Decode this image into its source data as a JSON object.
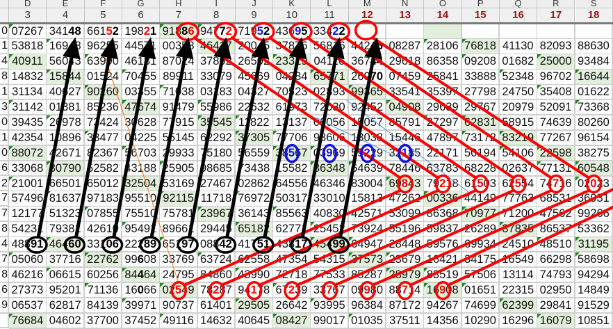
{
  "sheet": {
    "column_letters": [
      "D",
      "E",
      "F",
      "G",
      "H",
      "I",
      "J",
      "K",
      "L",
      "M",
      "N",
      "O",
      "P",
      "Q",
      "R",
      "S"
    ],
    "column_numbers": [
      "3",
      "4",
      "5",
      "6",
      "7",
      "8",
      "9",
      "10",
      "11",
      "12",
      "13",
      "14",
      "15",
      "16",
      "17",
      "18"
    ],
    "row_label_tails": [
      "0",
      "1",
      "4",
      "8",
      "1",
      "3",
      "0",
      "1",
      "0",
      "6",
      "2",
      "7",
      "7",
      "8",
      "4",
      "7",
      "8",
      "6",
      "9",
      ""
    ],
    "rows": [
      [
        "07267",
        [
          [
            "341",
            ""
          ],
          [
            "48",
            "b"
          ]
        ],
        [
          [
            "661",
            ""
          ],
          [
            "5",
            "r"
          ],
          [
            "2",
            "b"
          ]
        ],
        [
          [
            "198",
            ""
          ],
          [
            "2",
            "r"
          ],
          [
            "1",
            "b"
          ]
        ],
        [
          [
            "918",
            ""
          ],
          [
            "8",
            "b"
          ],
          [
            "6",
            "r"
          ]
        ],
        [
          [
            "947",
            ""
          ],
          [
            "7",
            "b"
          ],
          [
            "2",
            "r"
          ]
        ],
        [
          [
            "719",
            ""
          ],
          [
            "5",
            "u"
          ],
          [
            "2",
            "b"
          ]
        ],
        [
          [
            "436",
            ""
          ],
          [
            "9",
            "u"
          ],
          [
            "5",
            "b"
          ]
        ],
        [
          [
            "334",
            ""
          ],
          [
            "2",
            "u"
          ],
          [
            "2",
            "b"
          ]
        ],
        "",
        "",
        "",
        "",
        "",
        "",
        ""
      ],
      [
        "53818",
        "16948",
        "96255",
        "44571",
        "00358",
        "46417",
        "20045",
        "37876",
        "56816",
        [
          [
            "442",
            ""
          ],
          [
            "46",
            "b"
          ]
        ],
        "08287",
        "28106",
        "76818",
        "41130",
        "82093",
        "88630"
      ],
      [
        "40911",
        "56043",
        "63990",
        "46181",
        "87024",
        "37892",
        "26502",
        "23319",
        "04116",
        [
          [
            "367",
            ""
          ],
          [
            "44",
            "b"
          ]
        ],
        "29618",
        "86358",
        "09208",
        "01682",
        "25000",
        "93484"
      ],
      [
        "14832",
        "15844",
        "01524",
        "70455",
        "89911",
        "33079",
        "45669",
        "04284",
        "65771",
        [
          [
            "269",
            ""
          ],
          [
            "70",
            "b"
          ]
        ],
        "07459",
        "25841",
        "33888",
        "52348",
        "96702",
        "16644"
      ],
      [
        "31134",
        "40627",
        "90260",
        "03355",
        "71038",
        "03183",
        "04327",
        "70523",
        "02893",
        "99365",
        "33541",
        "35397",
        "27798",
        "24750",
        "35408",
        "01622"
      ],
      [
        "31142",
        "01381",
        "85236",
        "47674",
        "91479",
        "55986",
        "22632",
        "61973",
        "72030",
        "92452",
        "04908",
        "29639",
        "29767",
        "20979",
        "52091",
        "73368"
      ],
      [
        "39435",
        "26978",
        "73424",
        "30628",
        "77915",
        "35545",
        "11822",
        "13137",
        "06056",
        "15057",
        "85791",
        "27297",
        "62831",
        "58915",
        "74639",
        "80260"
      ],
      [
        "42354",
        "10896",
        "38477",
        "04225",
        "55145",
        "62292",
        "37305",
        "77706",
        "98606",
        "13038",
        "15446",
        "47897",
        "73172",
        "83219",
        "77267",
        "96154"
      ],
      [
        "88072",
        "42671",
        "82367",
        "56703",
        "29933",
        "75180",
        "56559",
        [
          [
            "38",
            ""
          ],
          [
            "5",
            "u"
          ],
          [
            "67",
            ""
          ]
        ],
        [
          [
            "03",
            ""
          ],
          [
            "9",
            "u"
          ],
          [
            "69",
            ""
          ]
        ],
        [
          [
            "59",
            ""
          ],
          [
            "2",
            "u"
          ],
          [
            "29",
            ""
          ]
        ],
        [
          [
            "32",
            ""
          ],
          [
            "1",
            "u"
          ],
          [
            "85",
            ""
          ]
        ],
        "22171",
        "50194",
        "54106",
        "22598",
        "38275"
      ],
      [
        "33068",
        "30790",
        "52582",
        "43188",
        "25905",
        "98685",
        "73438",
        "15582",
        "86348",
        "64639",
        "78446",
        "63783",
        "68228",
        "02637",
        "77131",
        "60548"
      ],
      [
        "21001",
        "66501",
        "65012",
        "32504",
        "53169",
        "27467",
        "02862",
        "64556",
        "46346",
        "83004",
        [
          [
            "69",
            ""
          ],
          [
            "8",
            "r"
          ],
          [
            "43",
            ""
          ]
        ],
        [
          [
            "79",
            ""
          ],
          [
            "2",
            "r"
          ],
          [
            "18",
            ""
          ]
        ],
        [
          [
            "61",
            ""
          ],
          [
            "5",
            "r"
          ],
          [
            "03",
            ""
          ]
        ],
        [
          [
            "62",
            ""
          ],
          [
            "5",
            "r"
          ],
          [
            "54",
            ""
          ]
        ],
        [
          [
            "74",
            ""
          ],
          [
            "7",
            "r"
          ],
          [
            "16",
            ""
          ]
        ],
        [
          [
            "02",
            ""
          ],
          [
            "0",
            "r"
          ],
          [
            "23",
            ""
          ]
        ]
      ],
      [
        "57496",
        "81637",
        "97183",
        "95510",
        "92115",
        "11718",
        "76972",
        "50317",
        "33010",
        "15813",
        "47262",
        "00336",
        "44149",
        "77763",
        "68531",
        "36931"
      ],
      [
        "12177",
        "51323",
        "07855",
        "75510",
        "75781",
        "23967",
        "36143",
        "85563",
        "40830",
        "42571",
        "53099",
        "86368",
        "70977",
        "71200",
        "47562",
        "99266"
      ],
      [
        "54231",
        "79381",
        "42610",
        "95491",
        "89661",
        "29445",
        "65182",
        "62771",
        "25452",
        "73924",
        "55196",
        "59837",
        "26289",
        "37835",
        "86537",
        "53362"
      ],
      [
        [
          [
            "488",
            ""
          ],
          [
            "91",
            "b"
          ]
        ],
        [
          [
            "464",
            ""
          ],
          [
            "60",
            "b"
          ]
        ],
        [
          [
            "331",
            ""
          ],
          [
            "06",
            "b"
          ]
        ],
        [
          [
            "222",
            ""
          ],
          [
            "89",
            "b"
          ]
        ],
        [
          [
            "651",
            ""
          ],
          [
            "97",
            "b"
          ]
        ],
        [
          [
            "088",
            ""
          ],
          [
            "42",
            "b"
          ]
        ],
        [
          [
            "417",
            ""
          ],
          [
            "51",
            "b"
          ]
        ],
        [
          [
            "438",
            ""
          ],
          [
            "17",
            "b"
          ]
        ],
        [
          [
            "454",
            ""
          ],
          [
            "99",
            "b"
          ]
        ],
        "64947",
        "28448",
        "59576",
        "69934",
        "24510",
        "48510",
        "31195"
      ],
      [
        "05060",
        "37716",
        "22762",
        [
          [
            "99",
            ""
          ],
          [
            "6",
            "b"
          ],
          [
            "08",
            ""
          ]
        ],
        "33769",
        "63724",
        "62558",
        "47354",
        "54315",
        "37573",
        "23679",
        "16421",
        "34175",
        "16549",
        "66298",
        "58698"
      ],
      [
        "46216",
        "06615",
        "60256",
        [
          [
            "84",
            ""
          ],
          [
            "4",
            "b"
          ],
          [
            "64",
            ""
          ]
        ],
        "24795",
        "84860",
        "43990",
        "72718",
        "77533",
        "85287",
        "28979",
        "83519",
        "57506",
        "13114",
        "74793",
        "94294"
      ],
      [
        "27373",
        "95201",
        "71136",
        [
          [
            "16",
            ""
          ],
          [
            "0",
            "b"
          ],
          [
            "66",
            ""
          ]
        ],
        [
          [
            "02",
            ""
          ],
          [
            "5",
            "r"
          ],
          [
            "49",
            ""
          ]
        ],
        [
          [
            "78",
            ""
          ],
          [
            "2",
            "r"
          ],
          [
            "87",
            ""
          ]
        ],
        [
          [
            "94",
            ""
          ],
          [
            "1",
            "r"
          ],
          [
            "78",
            ""
          ]
        ],
        [
          [
            "67",
            ""
          ],
          [
            "2",
            "r"
          ],
          [
            "39",
            ""
          ]
        ],
        [
          [
            "33",
            ""
          ],
          [
            "7",
            "r"
          ],
          [
            "67",
            ""
          ]
        ],
        [
          [
            "09",
            ""
          ],
          [
            "9",
            "r"
          ],
          [
            "80",
            ""
          ]
        ],
        [
          [
            "88",
            ""
          ],
          [
            "7",
            "r"
          ],
          [
            "14",
            ""
          ]
        ],
        [
          [
            "16",
            ""
          ],
          [
            "9",
            "r"
          ],
          [
            "08",
            ""
          ]
        ],
        "01651",
        "22315",
        "02950",
        "14849"
      ],
      [
        "06537",
        "62817",
        "84139",
        "39971",
        "90737",
        "61401",
        "29505",
        "26642",
        "93995",
        "96384",
        "87172",
        "94267",
        "74699",
        "62399",
        "29841",
        "91529"
      ],
      [
        "76684",
        "04602",
        "37700",
        "37452",
        "49116",
        "14632",
        "40645",
        "08427",
        "99017",
        "01035",
        "37511",
        "14356",
        "10290",
        "16296",
        "16079",
        "10851"
      ]
    ],
    "highlight_color": "#e2efda",
    "late_column_number_color": "#9c1414"
  },
  "annotations": {
    "black_arrow_color": "#000000",
    "red_mark_color": "#ff0000",
    "blue_mark_color": "#1010e0"
  }
}
